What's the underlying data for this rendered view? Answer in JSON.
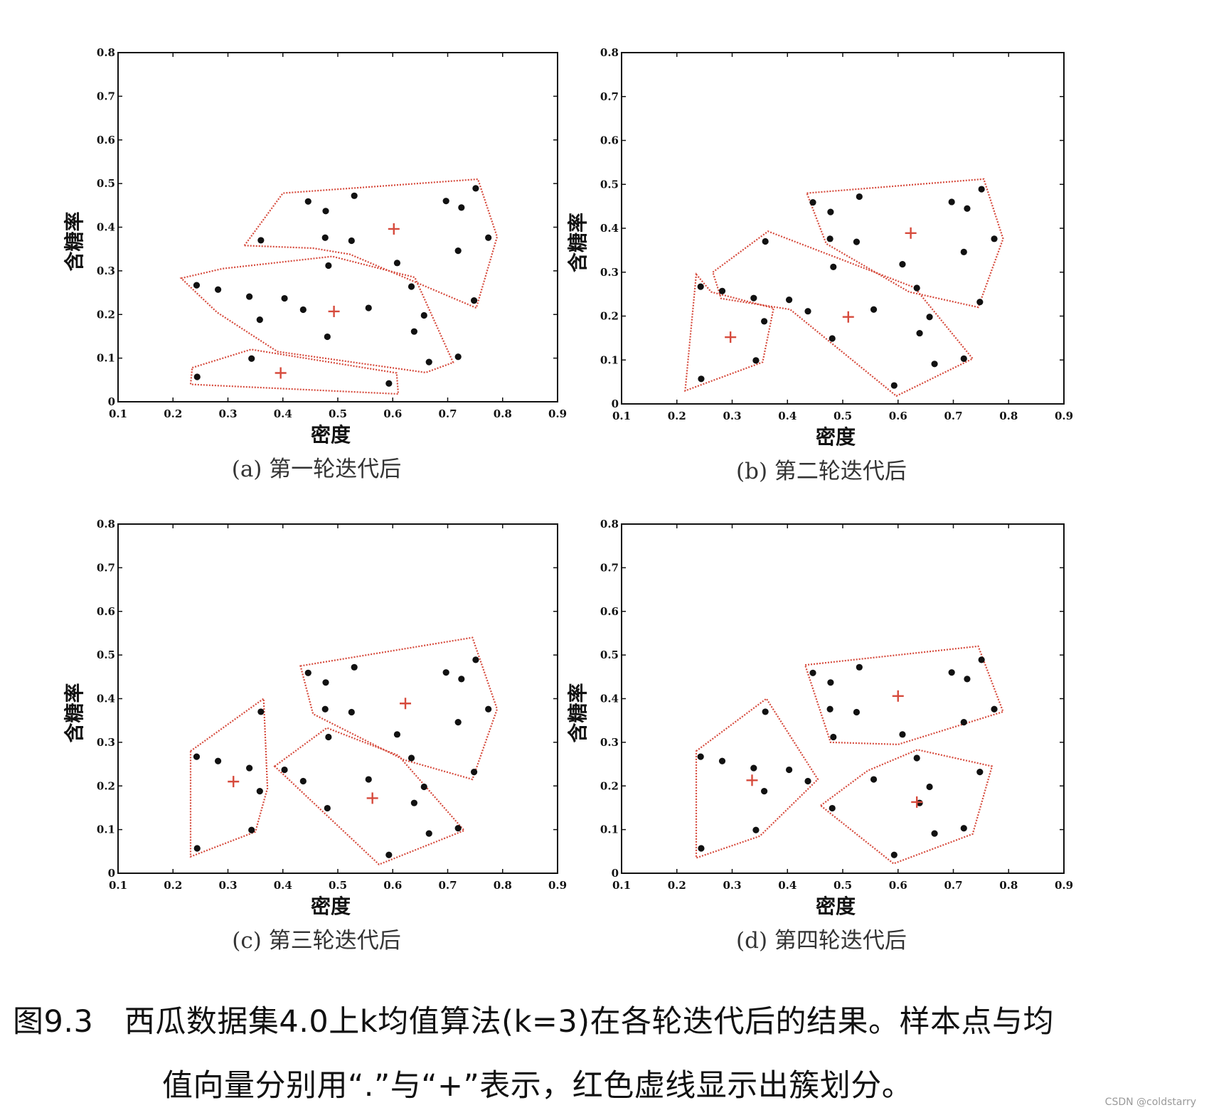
{
  "colors": {
    "hull": "#d64a3c",
    "centroid": "#d64a3c",
    "point": "#111111",
    "axes": "#111111"
  },
  "chart_data": [
    {
      "type": "scatter",
      "subcaption": "(a) 第一轮迭代后",
      "xlabel": "密度",
      "ylabel": "含糖率",
      "xlim": [
        0.1,
        0.9
      ],
      "ylim": [
        0,
        0.8
      ],
      "xticks": [
        "0.1",
        "0.2",
        "0.3",
        "0.4",
        "0.5",
        "0.6",
        "0.7",
        "0.8",
        "0.9"
      ],
      "yticks": [
        "0",
        "0.1",
        "0.2",
        "0.3",
        "0.4",
        "0.5",
        "0.6",
        "0.7",
        "0.8"
      ],
      "points": [
        [
          0.244,
          0.057
        ],
        [
          0.343,
          0.099
        ],
        [
          0.593,
          0.042
        ],
        [
          0.36,
          0.37
        ],
        [
          0.446,
          0.459
        ],
        [
          0.478,
          0.437
        ],
        [
          0.53,
          0.472
        ],
        [
          0.697,
          0.46
        ],
        [
          0.719,
          0.346
        ],
        [
          0.725,
          0.445
        ],
        [
          0.751,
          0.489
        ],
        [
          0.774,
          0.376
        ],
        [
          0.243,
          0.267
        ],
        [
          0.282,
          0.257
        ],
        [
          0.339,
          0.241
        ],
        [
          0.358,
          0.188
        ],
        [
          0.403,
          0.237
        ],
        [
          0.437,
          0.211
        ],
        [
          0.481,
          0.149
        ],
        [
          0.483,
          0.312
        ],
        [
          0.525,
          0.369
        ],
        [
          0.556,
          0.215
        ],
        [
          0.608,
          0.318
        ],
        [
          0.634,
          0.264
        ],
        [
          0.639,
          0.161
        ],
        [
          0.657,
          0.198
        ],
        [
          0.666,
          0.091
        ],
        [
          0.748,
          0.232
        ],
        [
          0.719,
          0.103
        ],
        [
          0.477,
          0.376
        ]
      ],
      "centroids": [
        [
          0.396,
          0.066
        ],
        [
          0.602,
          0.396
        ],
        [
          0.493,
          0.207
        ]
      ],
      "hulls": [
        [
          [
            0.235,
            0.078
          ],
          [
            0.342,
            0.12
          ],
          [
            0.607,
            0.066
          ],
          [
            0.61,
            0.018
          ],
          [
            0.232,
            0.04
          ]
        ],
        [
          [
            0.33,
            0.358
          ],
          [
            0.4,
            0.478
          ],
          [
            0.755,
            0.51
          ],
          [
            0.79,
            0.378
          ],
          [
            0.752,
            0.215
          ],
          [
            0.522,
            0.338
          ],
          [
            0.455,
            0.352
          ]
        ],
        [
          [
            0.215,
            0.283
          ],
          [
            0.29,
            0.305
          ],
          [
            0.49,
            0.333
          ],
          [
            0.64,
            0.285
          ],
          [
            0.71,
            0.09
          ],
          [
            0.66,
            0.067
          ],
          [
            0.39,
            0.115
          ],
          [
            0.28,
            0.205
          ]
        ]
      ]
    },
    {
      "type": "scatter",
      "subcaption": "(b) 第二轮迭代后",
      "xlabel": "密度",
      "ylabel": "含糖率",
      "xlim": [
        0.1,
        0.9
      ],
      "ylim": [
        0,
        0.8
      ],
      "xticks": [
        "0.1",
        "0.2",
        "0.3",
        "0.4",
        "0.5",
        "0.6",
        "0.7",
        "0.8",
        "0.9"
      ],
      "yticks": [
        "0",
        "0.1",
        "0.2",
        "0.3",
        "0.4",
        "0.5",
        "0.6",
        "0.7",
        "0.8"
      ],
      "points": [
        [
          0.244,
          0.057
        ],
        [
          0.343,
          0.099
        ],
        [
          0.593,
          0.042
        ],
        [
          0.36,
          0.37
        ],
        [
          0.446,
          0.459
        ],
        [
          0.478,
          0.437
        ],
        [
          0.53,
          0.472
        ],
        [
          0.697,
          0.46
        ],
        [
          0.719,
          0.346
        ],
        [
          0.725,
          0.445
        ],
        [
          0.751,
          0.489
        ],
        [
          0.774,
          0.376
        ],
        [
          0.243,
          0.267
        ],
        [
          0.282,
          0.257
        ],
        [
          0.339,
          0.241
        ],
        [
          0.358,
          0.188
        ],
        [
          0.403,
          0.237
        ],
        [
          0.437,
          0.211
        ],
        [
          0.481,
          0.149
        ],
        [
          0.483,
          0.312
        ],
        [
          0.525,
          0.369
        ],
        [
          0.556,
          0.215
        ],
        [
          0.608,
          0.318
        ],
        [
          0.634,
          0.264
        ],
        [
          0.639,
          0.161
        ],
        [
          0.657,
          0.198
        ],
        [
          0.666,
          0.091
        ],
        [
          0.748,
          0.232
        ],
        [
          0.719,
          0.103
        ],
        [
          0.477,
          0.376
        ]
      ],
      "centroids": [
        [
          0.297,
          0.152
        ],
        [
          0.623,
          0.389
        ],
        [
          0.51,
          0.198
        ]
      ],
      "hulls": [
        [
          [
            0.235,
            0.295
          ],
          [
            0.262,
            0.255
          ],
          [
            0.375,
            0.218
          ],
          [
            0.355,
            0.095
          ],
          [
            0.215,
            0.03
          ]
        ],
        [
          [
            0.265,
            0.3
          ],
          [
            0.365,
            0.393
          ],
          [
            0.63,
            0.265
          ],
          [
            0.735,
            0.103
          ],
          [
            0.597,
            0.018
          ],
          [
            0.405,
            0.215
          ],
          [
            0.28,
            0.24
          ]
        ],
        [
          [
            0.435,
            0.48
          ],
          [
            0.755,
            0.512
          ],
          [
            0.79,
            0.376
          ],
          [
            0.745,
            0.22
          ],
          [
            0.62,
            0.255
          ],
          [
            0.47,
            0.365
          ]
        ]
      ]
    },
    {
      "type": "scatter",
      "subcaption": "(c) 第三轮迭代后",
      "xlabel": "密度",
      "ylabel": "含糖率",
      "xlim": [
        0.1,
        0.9
      ],
      "ylim": [
        0,
        0.8
      ],
      "xticks": [
        "0.1",
        "0.2",
        "0.3",
        "0.4",
        "0.5",
        "0.6",
        "0.7",
        "0.8",
        "0.9"
      ],
      "yticks": [
        "0",
        "0.1",
        "0.2",
        "0.3",
        "0.4",
        "0.5",
        "0.6",
        "0.7",
        "0.8"
      ],
      "points": [
        [
          0.244,
          0.057
        ],
        [
          0.343,
          0.099
        ],
        [
          0.593,
          0.042
        ],
        [
          0.36,
          0.37
        ],
        [
          0.446,
          0.459
        ],
        [
          0.478,
          0.437
        ],
        [
          0.53,
          0.472
        ],
        [
          0.697,
          0.46
        ],
        [
          0.719,
          0.346
        ],
        [
          0.725,
          0.445
        ],
        [
          0.751,
          0.489
        ],
        [
          0.774,
          0.376
        ],
        [
          0.243,
          0.267
        ],
        [
          0.282,
          0.257
        ],
        [
          0.339,
          0.241
        ],
        [
          0.358,
          0.188
        ],
        [
          0.403,
          0.237
        ],
        [
          0.437,
          0.211
        ],
        [
          0.481,
          0.149
        ],
        [
          0.483,
          0.312
        ],
        [
          0.525,
          0.369
        ],
        [
          0.556,
          0.215
        ],
        [
          0.608,
          0.318
        ],
        [
          0.634,
          0.264
        ],
        [
          0.639,
          0.161
        ],
        [
          0.657,
          0.198
        ],
        [
          0.666,
          0.091
        ],
        [
          0.748,
          0.232
        ],
        [
          0.719,
          0.103
        ],
        [
          0.477,
          0.376
        ]
      ],
      "centroids": [
        [
          0.31,
          0.21
        ],
        [
          0.623,
          0.389
        ],
        [
          0.563,
          0.172
        ]
      ],
      "hulls": [
        [
          [
            0.232,
            0.28
          ],
          [
            0.365,
            0.4
          ],
          [
            0.372,
            0.195
          ],
          [
            0.35,
            0.095
          ],
          [
            0.232,
            0.038
          ]
        ],
        [
          [
            0.432,
            0.475
          ],
          [
            0.745,
            0.54
          ],
          [
            0.79,
            0.376
          ],
          [
            0.745,
            0.215
          ],
          [
            0.62,
            0.26
          ],
          [
            0.455,
            0.365
          ]
        ],
        [
          [
            0.385,
            0.245
          ],
          [
            0.48,
            0.333
          ],
          [
            0.61,
            0.27
          ],
          [
            0.73,
            0.098
          ],
          [
            0.575,
            0.02
          ]
        ]
      ]
    },
    {
      "type": "scatter",
      "subcaption": "(d) 第四轮迭代后",
      "xlabel": "密度",
      "ylabel": "含糖率",
      "xlim": [
        0.1,
        0.9
      ],
      "ylim": [
        0,
        0.8
      ],
      "xticks": [
        "0.1",
        "0.2",
        "0.3",
        "0.4",
        "0.5",
        "0.6",
        "0.7",
        "0.8",
        "0.9"
      ],
      "yticks": [
        "0",
        "0.1",
        "0.2",
        "0.3",
        "0.4",
        "0.5",
        "0.6",
        "0.7",
        "0.8"
      ],
      "points": [
        [
          0.244,
          0.057
        ],
        [
          0.343,
          0.099
        ],
        [
          0.593,
          0.042
        ],
        [
          0.36,
          0.37
        ],
        [
          0.446,
          0.459
        ],
        [
          0.478,
          0.437
        ],
        [
          0.53,
          0.472
        ],
        [
          0.697,
          0.46
        ],
        [
          0.719,
          0.346
        ],
        [
          0.725,
          0.445
        ],
        [
          0.751,
          0.489
        ],
        [
          0.774,
          0.376
        ],
        [
          0.243,
          0.267
        ],
        [
          0.282,
          0.257
        ],
        [
          0.339,
          0.241
        ],
        [
          0.358,
          0.188
        ],
        [
          0.403,
          0.237
        ],
        [
          0.437,
          0.211
        ],
        [
          0.481,
          0.149
        ],
        [
          0.483,
          0.312
        ],
        [
          0.525,
          0.369
        ],
        [
          0.556,
          0.215
        ],
        [
          0.608,
          0.318
        ],
        [
          0.634,
          0.264
        ],
        [
          0.639,
          0.161
        ],
        [
          0.657,
          0.198
        ],
        [
          0.666,
          0.091
        ],
        [
          0.748,
          0.232
        ],
        [
          0.719,
          0.103
        ],
        [
          0.477,
          0.376
        ]
      ],
      "centroids": [
        [
          0.336,
          0.213
        ],
        [
          0.6,
          0.406
        ],
        [
          0.634,
          0.163
        ]
      ],
      "hulls": [
        [
          [
            0.235,
            0.28
          ],
          [
            0.362,
            0.4
          ],
          [
            0.455,
            0.215
          ],
          [
            0.35,
            0.085
          ],
          [
            0.235,
            0.035
          ]
        ],
        [
          [
            0.432,
            0.477
          ],
          [
            0.745,
            0.52
          ],
          [
            0.79,
            0.37
          ],
          [
            0.6,
            0.295
          ],
          [
            0.478,
            0.3
          ]
        ],
        [
          [
            0.46,
            0.155
          ],
          [
            0.545,
            0.235
          ],
          [
            0.635,
            0.283
          ],
          [
            0.77,
            0.245
          ],
          [
            0.735,
            0.09
          ],
          [
            0.592,
            0.022
          ]
        ]
      ]
    }
  ],
  "caption": {
    "line1": "图9.3　西瓜数据集4.0上k均值算法(k=3)在各轮迭代后的结果。样本点与均",
    "line2": "值向量分别用“.”与“+”表示，红色虚线显示出簇划分。"
  },
  "watermark": "CSDN @coldstarry"
}
